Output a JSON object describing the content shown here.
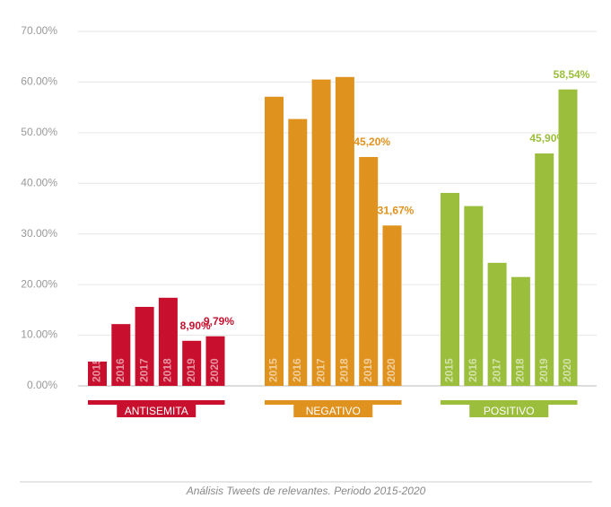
{
  "chart_data": {
    "type": "bar",
    "caption": "Análisis Tweets de relevantes. Periodo 2015-2020",
    "categories": [
      "2015",
      "2016",
      "2017",
      "2018",
      "2019",
      "2020"
    ],
    "series": [
      {
        "name": "ANTISEMITA",
        "color": "#c8102e",
        "values": [
          4.8,
          12.2,
          15.6,
          17.4,
          8.9,
          9.79
        ],
        "value_labels": [
          null,
          null,
          null,
          null,
          "8,90%",
          "9,79%"
        ]
      },
      {
        "name": "NEGATIVO",
        "color": "#e0921e",
        "values": [
          57.1,
          52.7,
          60.5,
          61.0,
          45.2,
          31.67
        ],
        "value_labels": [
          null,
          null,
          null,
          null,
          "45,20%",
          "31,67%"
        ]
      },
      {
        "name": "POSITIVO",
        "color": "#9bbe3c",
        "values": [
          38.1,
          35.5,
          24.3,
          21.5,
          45.9,
          58.54
        ],
        "value_labels": [
          null,
          null,
          null,
          null,
          "45,90%",
          "58,54%"
        ]
      }
    ],
    "ylim": [
      0,
      70
    ],
    "yticks": [
      {
        "value": 0,
        "label": "0.00%"
      },
      {
        "value": 10,
        "label": "10.00%"
      },
      {
        "value": 20,
        "label": "20.00%"
      },
      {
        "value": 30,
        "label": "30.00%"
      },
      {
        "value": 40,
        "label": "40.00%"
      },
      {
        "value": 50,
        "label": "50.00%"
      },
      {
        "value": 60,
        "label": "60.00%"
      },
      {
        "value": 70,
        "label": "70.00%"
      }
    ],
    "grid": true
  }
}
